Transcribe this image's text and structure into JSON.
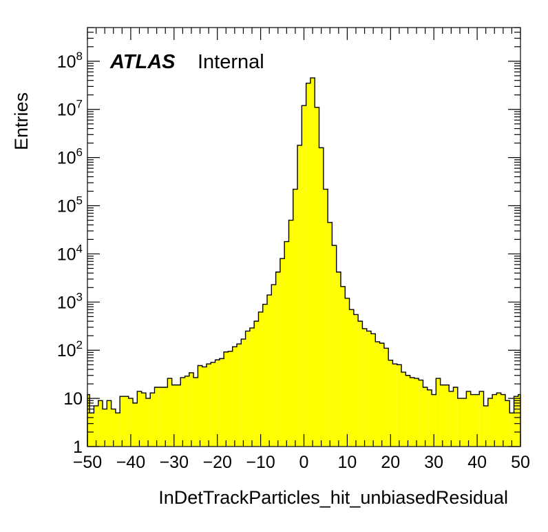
{
  "chart_data": {
    "type": "bar",
    "histogram": true,
    "title": "",
    "xlabel": "InDetTrackParticles_hit_unbiasedResidual",
    "ylabel": "Entries",
    "xlim": [
      -50,
      50
    ],
    "ylim": [
      1,
      500000000
    ],
    "log_y": true,
    "grid": false,
    "bin_width": 1,
    "x_tick_labels": [
      "−50",
      "−40",
      "−30",
      "−20",
      "−10",
      "0",
      "10",
      "20",
      "30",
      "40",
      "50"
    ],
    "x_tick_values": [
      -50,
      -40,
      -30,
      -20,
      -10,
      0,
      10,
      20,
      30,
      40,
      50
    ],
    "y_tick_values": [
      1,
      10,
      100,
      1000,
      10000,
      100000,
      1000000,
      10000000,
      100000000
    ],
    "y_tick_labels": [
      {
        "base": "1",
        "exp": ""
      },
      {
        "base": "10",
        "exp": ""
      },
      {
        "base": "10",
        "exp": "2"
      },
      {
        "base": "10",
        "exp": "3"
      },
      {
        "base": "10",
        "exp": "4"
      },
      {
        "base": "10",
        "exp": "5"
      },
      {
        "base": "10",
        "exp": "6"
      },
      {
        "base": "10",
        "exp": "7"
      },
      {
        "base": "10",
        "exp": "8"
      }
    ],
    "labels": {
      "experiment": "ATLAS",
      "status": "Internal"
    },
    "fill_color": "#ffff00",
    "line_color": "#000000",
    "values": [
      12,
      5,
      7,
      9,
      6,
      9,
      6,
      5,
      11,
      11,
      10,
      8,
      14,
      13,
      10,
      13,
      17,
      17,
      17,
      26,
      19,
      19,
      27,
      29,
      34,
      27,
      48,
      45,
      52,
      56,
      63,
      67,
      92,
      95,
      118,
      135,
      170,
      250,
      290,
      400,
      620,
      900,
      1400,
      2300,
      4200,
      8000,
      18000,
      50000,
      220000,
      1800000,
      12000000,
      35000000,
      45000000,
      11000000,
      1600000,
      220000,
      45000,
      15000,
      4200,
      2100,
      1200,
      700,
      550,
      400,
      280,
      250,
      220,
      150,
      140,
      110,
      62,
      52,
      50,
      35,
      30,
      27,
      26,
      24,
      17,
      15,
      12,
      26,
      19,
      19,
      14,
      17,
      10,
      10,
      14,
      12,
      12,
      14,
      7,
      10,
      12,
      13,
      12,
      9,
      5,
      11,
      12
    ],
    "value_count": 101
  }
}
